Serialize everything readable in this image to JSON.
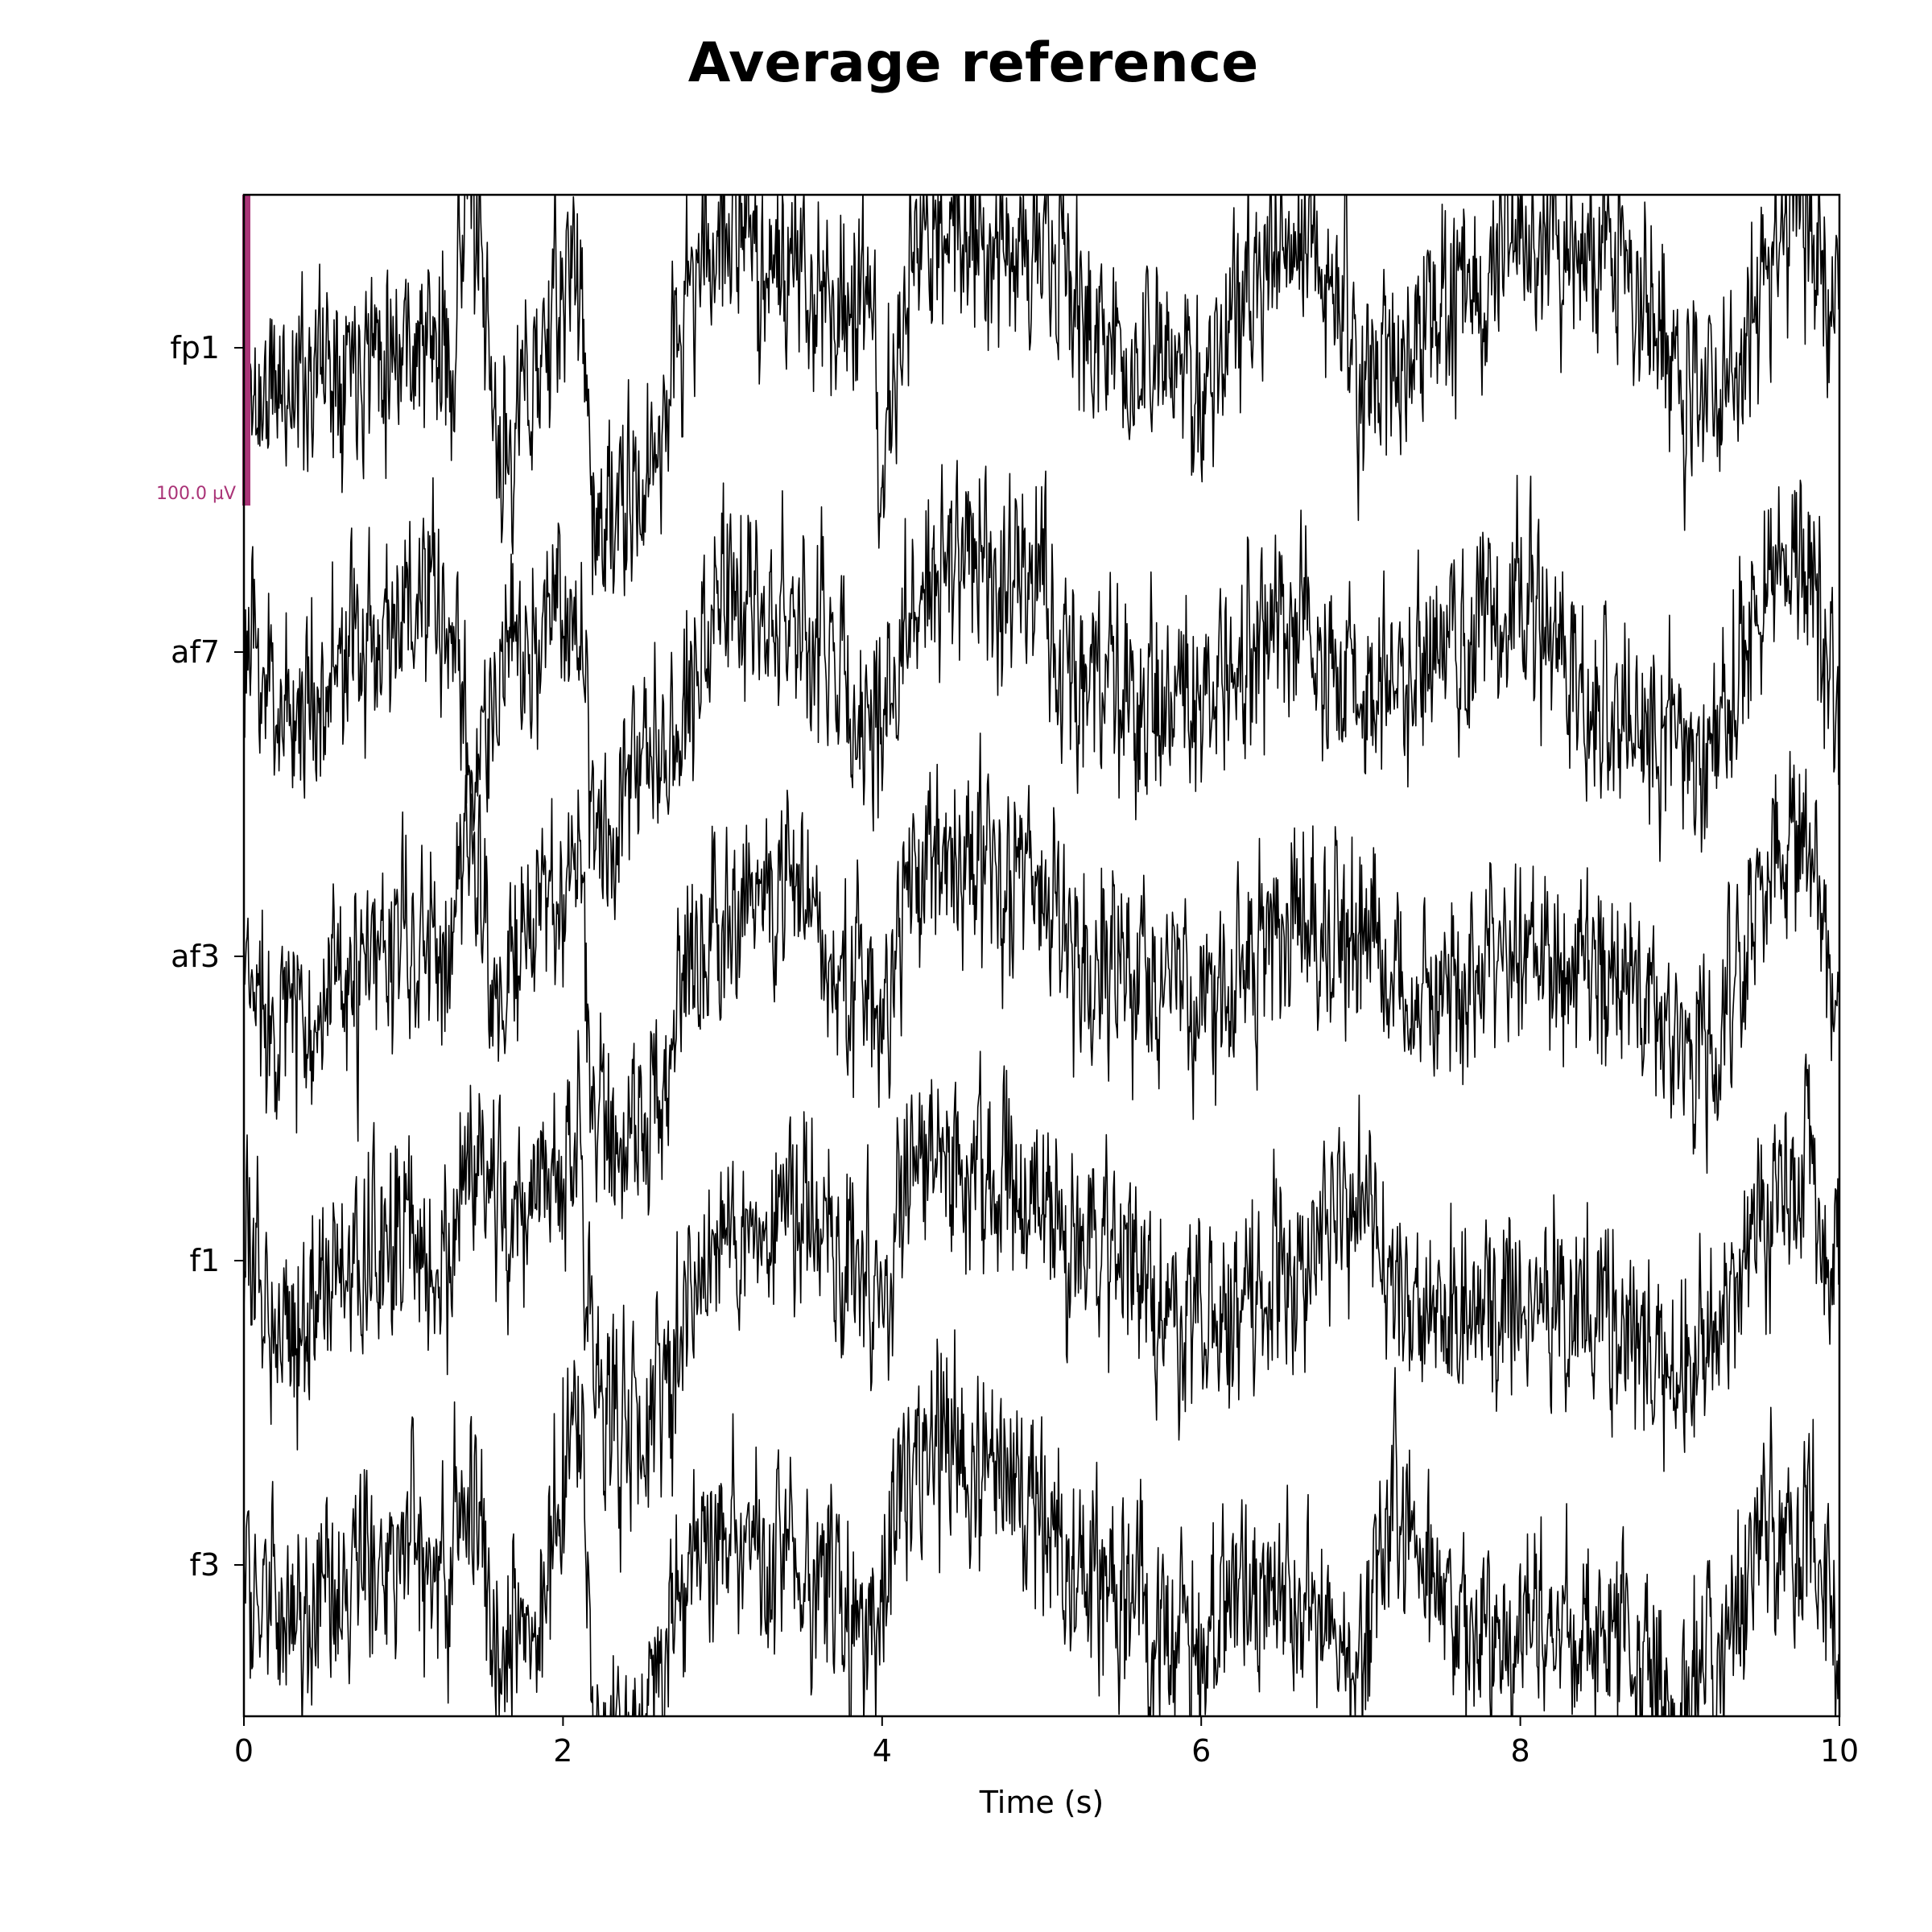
{
  "colors": {
    "trace": "#000000",
    "scale_bar": "#AA3377",
    "background": "#ffffff"
  },
  "chart_data": {
    "type": "line",
    "title": "Average reference",
    "xlabel": "Time (s)",
    "ylabel": "",
    "xlim": [
      0,
      10
    ],
    "x_ticks": [
      0,
      2,
      4,
      6,
      8,
      10
    ],
    "grid": false,
    "legend": "none",
    "scale_bar": {
      "label": "100.0 µV",
      "value_uV": 100
    },
    "channels": [
      "fp1",
      "af7",
      "af3",
      "f1",
      "f3"
    ],
    "series": [
      {
        "name": "fp1",
        "seed": 11,
        "amp_uV": 30,
        "envelope": [
          [
            0,
            -20
          ],
          [
            0.6,
            0
          ],
          [
            1.0,
            5
          ],
          [
            1.3,
            -5
          ],
          [
            1.4,
            60
          ],
          [
            1.6,
            -40
          ],
          [
            1.8,
            -10
          ],
          [
            2.1,
            30
          ],
          [
            2.2,
            -60
          ],
          [
            2.5,
            -50
          ],
          [
            2.8,
            20
          ],
          [
            3.0,
            40
          ],
          [
            3.5,
            20
          ],
          [
            3.9,
            15
          ],
          [
            4.0,
            -40
          ],
          [
            4.2,
            30
          ],
          [
            4.5,
            40
          ],
          [
            5.0,
            30
          ],
          [
            5.5,
            -5
          ],
          [
            6.0,
            -10
          ],
          [
            6.5,
            30
          ],
          [
            6.9,
            25
          ],
          [
            7.0,
            -25
          ],
          [
            7.2,
            0
          ],
          [
            7.5,
            10
          ],
          [
            8.0,
            30
          ],
          [
            8.5,
            30
          ],
          [
            8.8,
            20
          ],
          [
            9.0,
            -20
          ],
          [
            9.3,
            -10
          ],
          [
            9.5,
            20
          ],
          [
            9.7,
            45
          ],
          [
            10,
            20
          ]
        ]
      },
      {
        "name": "af7",
        "seed": 23,
        "amp_uV": 30,
        "envelope": [
          [
            0,
            0
          ],
          [
            0.3,
            -20
          ],
          [
            1.0,
            15
          ],
          [
            1.3,
            10
          ],
          [
            1.4,
            -40
          ],
          [
            1.6,
            -10
          ],
          [
            1.8,
            0
          ],
          [
            2.1,
            20
          ],
          [
            2.2,
            -60
          ],
          [
            2.4,
            -40
          ],
          [
            2.8,
            -10
          ],
          [
            3.0,
            20
          ],
          [
            3.5,
            10
          ],
          [
            3.9,
            -20
          ],
          [
            4.0,
            -30
          ],
          [
            4.2,
            20
          ],
          [
            4.5,
            30
          ],
          [
            5.0,
            20
          ],
          [
            5.2,
            -5
          ],
          [
            5.5,
            -15
          ],
          [
            6.0,
            -20
          ],
          [
            6.5,
            10
          ],
          [
            7.0,
            -20
          ],
          [
            7.2,
            -10
          ],
          [
            7.5,
            0
          ],
          [
            8.0,
            15
          ],
          [
            8.5,
            -20
          ],
          [
            9.0,
            -30
          ],
          [
            9.3,
            -20
          ],
          [
            9.5,
            15
          ],
          [
            9.8,
            30
          ],
          [
            10,
            -20
          ]
        ]
      },
      {
        "name": "af3",
        "seed": 37,
        "amp_uV": 30,
        "envelope": [
          [
            0,
            -10
          ],
          [
            0.3,
            -20
          ],
          [
            0.6,
            -15
          ],
          [
            1.0,
            5
          ],
          [
            1.3,
            0
          ],
          [
            1.4,
            50
          ],
          [
            1.6,
            -20
          ],
          [
            1.8,
            10
          ],
          [
            2.1,
            30
          ],
          [
            2.2,
            -55
          ],
          [
            2.5,
            -60
          ],
          [
            2.8,
            0
          ],
          [
            3.0,
            20
          ],
          [
            3.5,
            20
          ],
          [
            3.9,
            -15
          ],
          [
            4.0,
            -20
          ],
          [
            4.2,
            25
          ],
          [
            4.5,
            35
          ],
          [
            5.0,
            20
          ],
          [
            5.3,
            -5
          ],
          [
            6.0,
            -15
          ],
          [
            6.5,
            10
          ],
          [
            7.0,
            10
          ],
          [
            7.2,
            -10
          ],
          [
            7.6,
            -15
          ],
          [
            8.0,
            5
          ],
          [
            8.5,
            -5
          ],
          [
            9.0,
            -30
          ],
          [
            9.3,
            -20
          ],
          [
            9.5,
            15
          ],
          [
            9.8,
            40
          ],
          [
            10,
            -25
          ]
        ]
      },
      {
        "name": "f1",
        "seed": 53,
        "amp_uV": 30,
        "envelope": [
          [
            0,
            0
          ],
          [
            0.3,
            -20
          ],
          [
            0.6,
            -5
          ],
          [
            1.0,
            10
          ],
          [
            1.3,
            -5
          ],
          [
            1.4,
            30
          ],
          [
            1.6,
            20
          ],
          [
            1.8,
            10
          ],
          [
            2.1,
            40
          ],
          [
            2.2,
            -40
          ],
          [
            2.5,
            -60
          ],
          [
            2.8,
            -10
          ],
          [
            3.0,
            10
          ],
          [
            3.5,
            15
          ],
          [
            3.9,
            -5
          ],
          [
            4.0,
            -20
          ],
          [
            4.2,
            40
          ],
          [
            4.5,
            30
          ],
          [
            5.0,
            15
          ],
          [
            5.3,
            -5
          ],
          [
            6.0,
            -20
          ],
          [
            6.5,
            -10
          ],
          [
            7.0,
            20
          ],
          [
            7.2,
            -10
          ],
          [
            7.6,
            -15
          ],
          [
            8.0,
            -10
          ],
          [
            8.5,
            -15
          ],
          [
            9.0,
            -40
          ],
          [
            9.3,
            -15
          ],
          [
            9.5,
            10
          ],
          [
            9.8,
            30
          ],
          [
            10,
            -10
          ]
        ]
      },
      {
        "name": "f3",
        "seed": 71,
        "amp_uV": 30,
        "envelope": [
          [
            0,
            0
          ],
          [
            0.3,
            -25
          ],
          [
            0.6,
            -10
          ],
          [
            1.0,
            10
          ],
          [
            1.3,
            0
          ],
          [
            1.4,
            35
          ],
          [
            1.6,
            -20
          ],
          [
            1.8,
            -20
          ],
          [
            2.1,
            50
          ],
          [
            2.2,
            -60
          ],
          [
            2.5,
            -50
          ],
          [
            2.8,
            0
          ],
          [
            3.0,
            10
          ],
          [
            3.5,
            0
          ],
          [
            3.9,
            -20
          ],
          [
            4.0,
            -10
          ],
          [
            4.2,
            40
          ],
          [
            4.5,
            35
          ],
          [
            5.0,
            15
          ],
          [
            5.3,
            -5
          ],
          [
            6.0,
            -25
          ],
          [
            6.5,
            -5
          ],
          [
            7.0,
            -25
          ],
          [
            7.2,
            20
          ],
          [
            7.6,
            -20
          ],
          [
            8.0,
            -20
          ],
          [
            8.5,
            -20
          ],
          [
            9.0,
            -40
          ],
          [
            9.3,
            -30
          ],
          [
            9.5,
            10
          ],
          [
            9.8,
            10
          ],
          [
            10,
            -30
          ]
        ]
      }
    ]
  }
}
